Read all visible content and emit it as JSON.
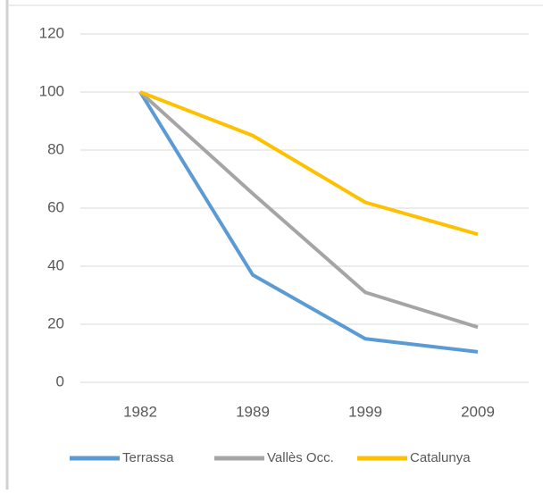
{
  "chart_data": {
    "type": "line",
    "categories": [
      "1982",
      "1989",
      "1999",
      "2009"
    ],
    "series": [
      {
        "name": "Terrassa",
        "color": "#5b9bd5",
        "values": [
          100,
          37,
          15,
          10.5
        ]
      },
      {
        "name": "Vallès Occ.",
        "color": "#a5a5a5",
        "values": [
          100,
          65,
          31,
          19
        ]
      },
      {
        "name": "Catalunya",
        "color": "#ffc000",
        "values": [
          100,
          85,
          62,
          51
        ]
      }
    ],
    "ylim": [
      0,
      120
    ],
    "yticks": [
      0,
      20,
      40,
      60,
      80,
      100,
      120
    ],
    "grid": true,
    "legend": "bottom"
  }
}
